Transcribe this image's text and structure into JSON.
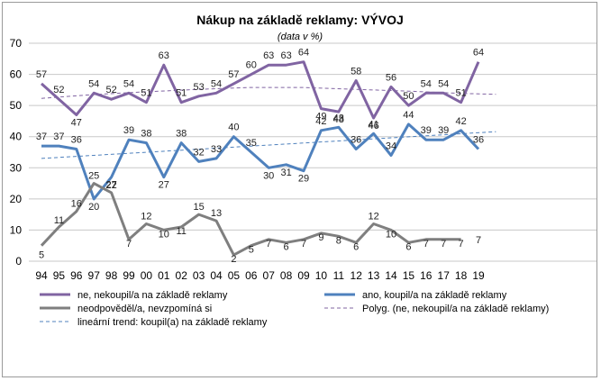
{
  "chart_data": {
    "type": "line",
    "title": "Nákup na základě reklamy: VÝVOJ",
    "subtitle": "(data v %)",
    "xlabel": "",
    "ylabel": "",
    "ylim": [
      0,
      70
    ],
    "yticks": [
      0,
      10,
      20,
      30,
      40,
      50,
      60,
      70
    ],
    "grid": true,
    "legend_position": "bottom",
    "tick_labels": [
      "94",
      "95",
      "96",
      "97",
      "98",
      "99",
      "00",
      "01",
      "02",
      "03",
      "04",
      "05",
      "06",
      "07",
      "08",
      "09",
      "10",
      "11",
      "12",
      "13",
      "14",
      "15",
      "16",
      "17",
      "18",
      "19"
    ],
    "series": [
      {
        "name": "ne, nekoupil/a na základě reklamy",
        "color": "#8064a2",
        "style": "solid",
        "x": [
          1994,
          1995,
          1996,
          1997,
          1998,
          1999,
          2000,
          2001,
          2002,
          2003,
          2004,
          2005,
          2006,
          2007,
          2008,
          2009,
          2010,
          2011,
          2012,
          2013,
          2014,
          2015,
          2016,
          2017,
          2018,
          2019
        ],
        "values": [
          57,
          52,
          47,
          54,
          52,
          54,
          51,
          63,
          51,
          53,
          54,
          57,
          60,
          63,
          63,
          64,
          49,
          48,
          58,
          46,
          56,
          50,
          54,
          54,
          51,
          64
        ],
        "labels": [
          "57",
          "52",
          "47",
          "54",
          "52",
          "54",
          "51",
          "63",
          "51",
          "53",
          "54",
          "57",
          "60",
          "63",
          "63",
          "64",
          "49",
          "48",
          "58",
          "46",
          "56",
          "50",
          "54",
          "54",
          "51",
          "64"
        ]
      },
      {
        "name": "ano, koupil/a na základě reklamy",
        "color": "#4f81bd",
        "style": "solid",
        "x": [
          1994,
          1995,
          1996,
          1997,
          1998,
          1999,
          2000,
          2001,
          2002,
          2003,
          2004,
          2005,
          2006,
          2007,
          2008,
          2009,
          2010,
          2011,
          2012,
          2013,
          2014,
          2015,
          2016,
          2017,
          2018,
          2019
        ],
        "values": [
          37,
          37,
          36,
          20,
          27,
          39,
          38,
          27,
          38,
          32,
          33,
          40,
          35,
          30,
          31,
          29,
          42,
          43,
          36,
          41,
          34,
          44,
          39,
          39,
          42,
          36
        ],
        "labels": [
          "37",
          "37",
          "36",
          "20",
          "27",
          "39",
          "38",
          "27",
          "38",
          "32",
          "33",
          "40",
          "35",
          "30",
          "31",
          "29",
          "42",
          "43",
          "36",
          "41",
          "34",
          "44",
          "39",
          "39",
          "42",
          "36"
        ]
      },
      {
        "name": "neodpověděl/a, nevzpomíná si",
        "color": "#7f7f7f",
        "style": "solid",
        "x": [
          1994,
          1995,
          1996,
          1997,
          1998,
          1999,
          2000,
          2001,
          2002,
          2003,
          2004,
          2005,
          2006,
          2007,
          2008,
          2009,
          2010,
          2011,
          2012,
          2013,
          2014,
          2015,
          2016,
          2017,
          2018
        ],
        "values": [
          5,
          11,
          16,
          25,
          22,
          7,
          12,
          10,
          11,
          15,
          13,
          2,
          5,
          7,
          6,
          7,
          9,
          8,
          6,
          12,
          10,
          6,
          7,
          7,
          7
        ],
        "labels": [
          "5",
          "11",
          "16",
          "25",
          "22",
          "7",
          "12",
          "10",
          "11",
          "15",
          "13",
          "2",
          "5",
          "7",
          "6",
          "7",
          "9",
          "8",
          "6",
          "12",
          "10",
          "6",
          "7",
          "7",
          "7"
        ]
      },
      {
        "name": "Polyg. (ne, nekoupil/a na základě reklamy)",
        "color": "#8064a2",
        "style": "dashed",
        "x": [
          1994,
          1997,
          2000,
          2003,
          2006,
          2009,
          2012,
          2015,
          2018,
          2020
        ],
        "values": [
          52.3,
          53.5,
          54.4,
          55.2,
          55.8,
          55.8,
          55.2,
          54.6,
          53.9,
          53.6
        ]
      },
      {
        "name": "lineární trend: koupil(a) na základě reklamy",
        "color": "#4f81bd",
        "style": "dashed",
        "x": [
          1994,
          2020
        ],
        "values": [
          33.0,
          41.6
        ]
      }
    ],
    "extra_labels": [
      {
        "series": 2,
        "x": 2019,
        "value": 7,
        "text": "7"
      }
    ]
  }
}
